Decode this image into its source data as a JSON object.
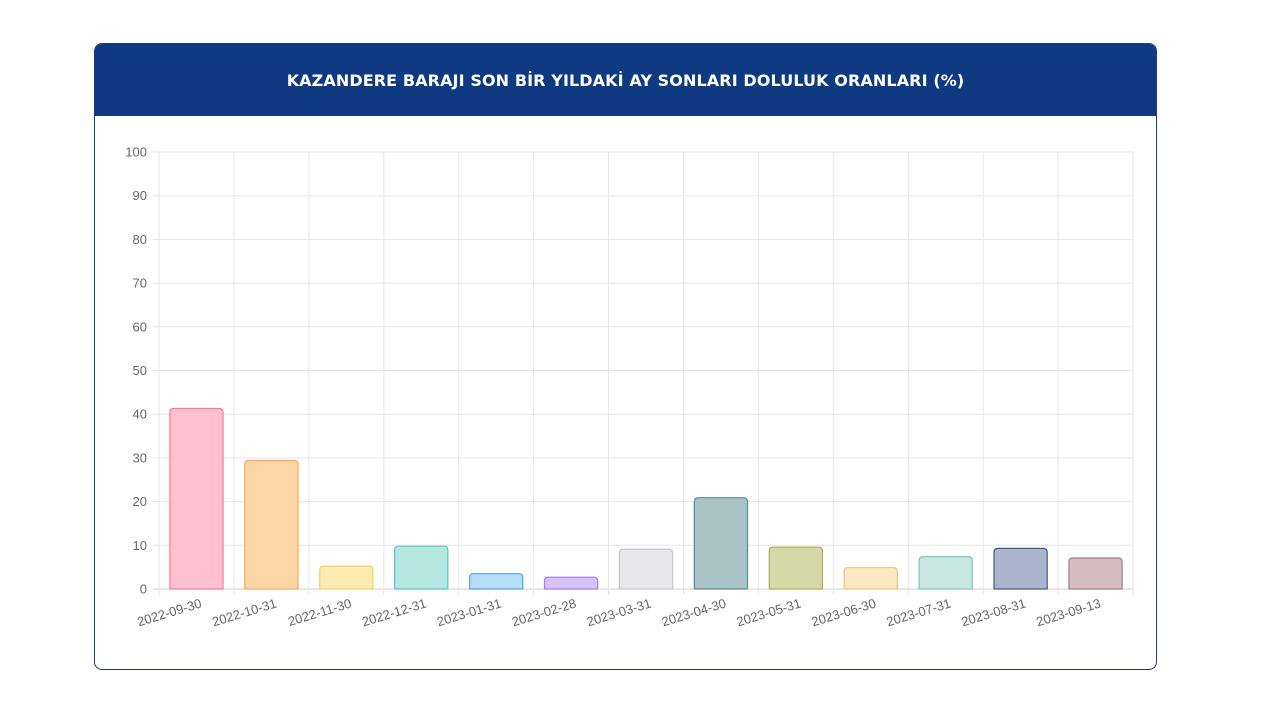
{
  "title": "KAZANDERE BARAJI SON BİR YILDAKİ AY SONLARI DOLULUK ORANLARI (%)",
  "chart_data": {
    "type": "bar",
    "categories": [
      "2022-09-30",
      "2022-10-31",
      "2022-11-30",
      "2022-12-31",
      "2023-01-31",
      "2023-02-28",
      "2023-03-31",
      "2023-04-30",
      "2023-05-31",
      "2023-06-30",
      "2023-07-31",
      "2023-08-31",
      "2023-09-13"
    ],
    "values": [
      41.3,
      29.4,
      5.2,
      9.8,
      3.5,
      2.7,
      9.1,
      20.9,
      9.6,
      4.9,
      7.4,
      9.3,
      7.1
    ],
    "ylim": [
      0,
      100
    ],
    "yticks": [
      0,
      10,
      20,
      30,
      40,
      50,
      60,
      70,
      80,
      90,
      100
    ],
    "grid": true,
    "fill_colors": [
      "#ffc1d0",
      "#fdd6a8",
      "#fdeab0",
      "#b4e6e2",
      "#b7dcf8",
      "#d7c4f7",
      "#e8e8ea",
      "#a9c3c6",
      "#d4d9a7",
      "#fbe8c0",
      "#c9e8e2",
      "#aab4cb",
      "#d6bdc3"
    ],
    "border_colors": [
      "#ff7a9a",
      "#f7a85a",
      "#f5cf6a",
      "#5cc6c0",
      "#4fa5e8",
      "#a07cf0",
      "#c6c6ca",
      "#5e8a92",
      "#a9b05c",
      "#ecc67a",
      "#7ec6b8",
      "#475a86",
      "#9f7f88"
    ]
  }
}
